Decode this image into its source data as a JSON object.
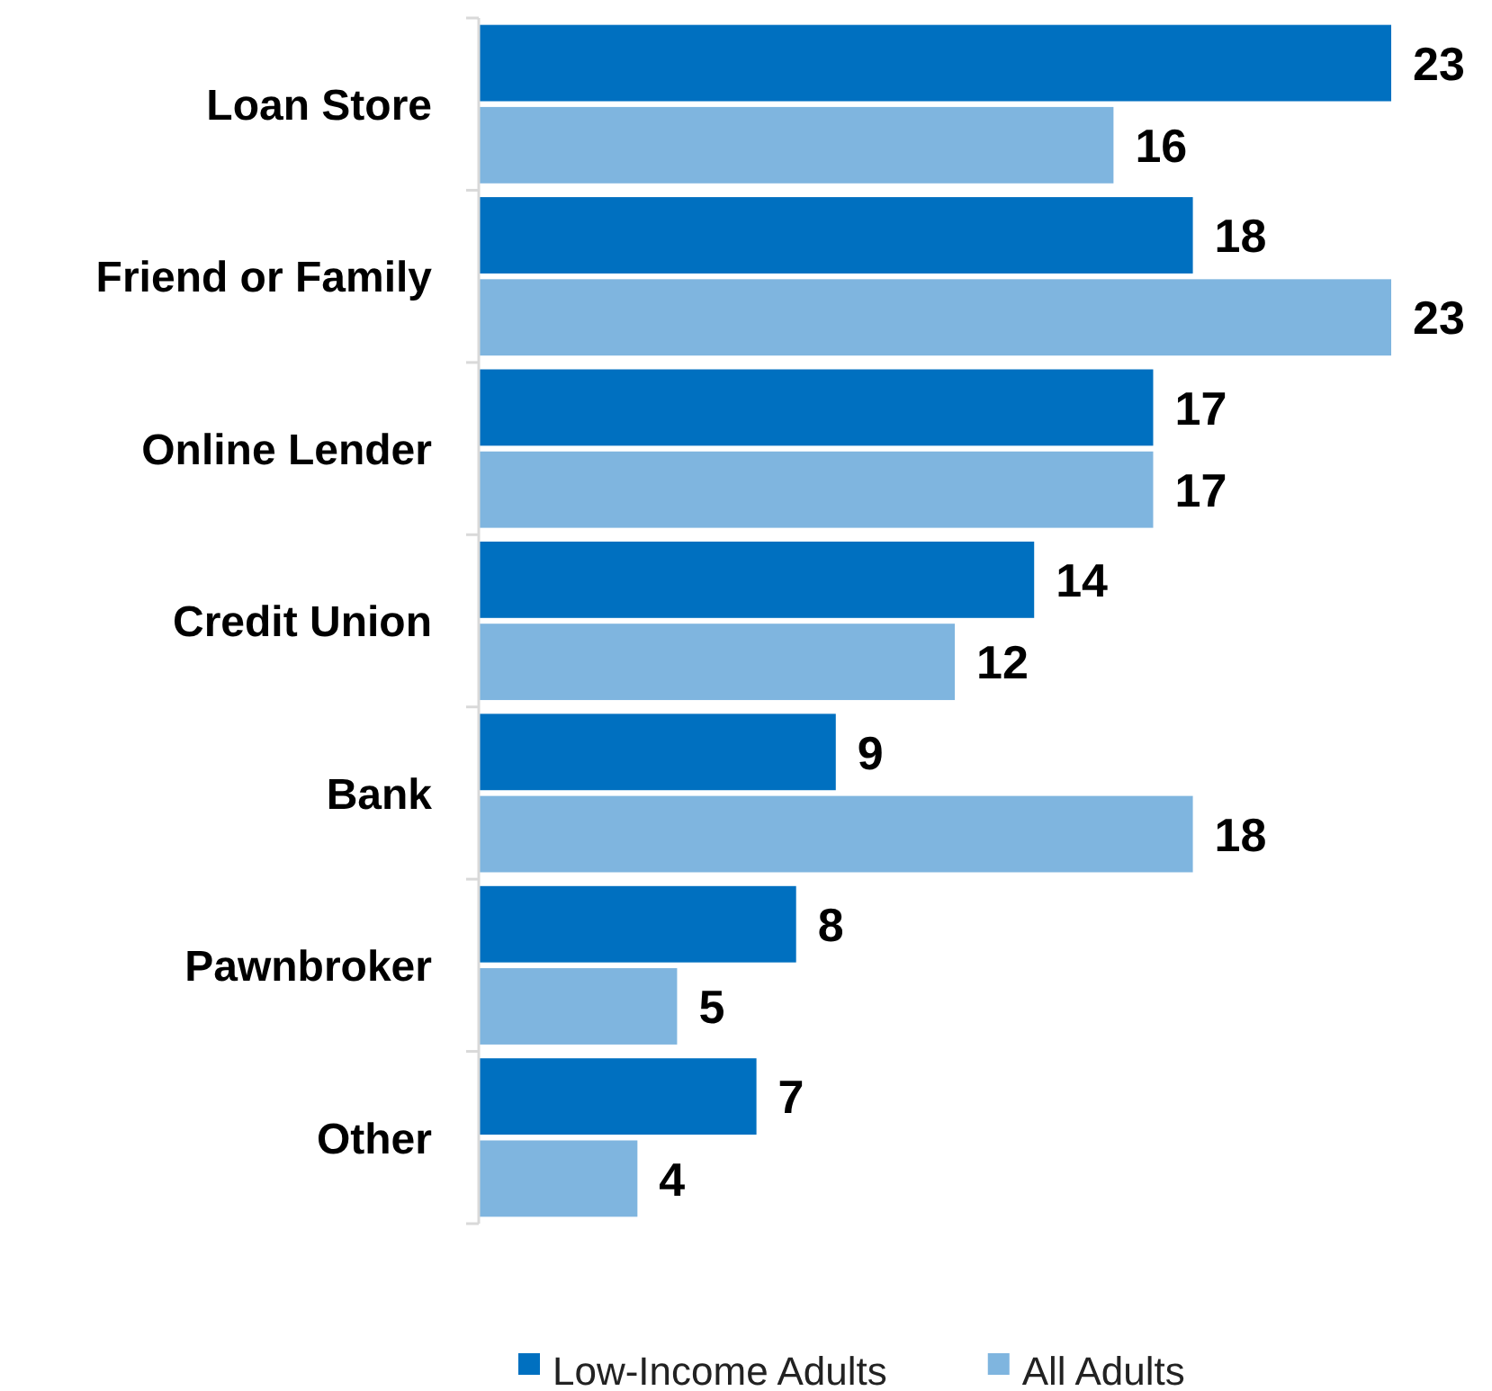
{
  "chart_data": {
    "type": "bar",
    "orientation": "horizontal",
    "categories": [
      "Loan Store",
      "Friend or Family",
      "Online Lender",
      "Credit Union",
      "Bank",
      "Pawnbroker",
      "Other"
    ],
    "series": [
      {
        "name": "Low-Income Adults",
        "color": "#0070c0",
        "values": [
          23,
          18,
          17,
          14,
          9,
          8,
          7
        ]
      },
      {
        "name": "All Adults",
        "color": "#7fb5df",
        "values": [
          16,
          23,
          17,
          12,
          18,
          5,
          4
        ]
      }
    ],
    "data_labels": true,
    "legend": "bottom"
  }
}
